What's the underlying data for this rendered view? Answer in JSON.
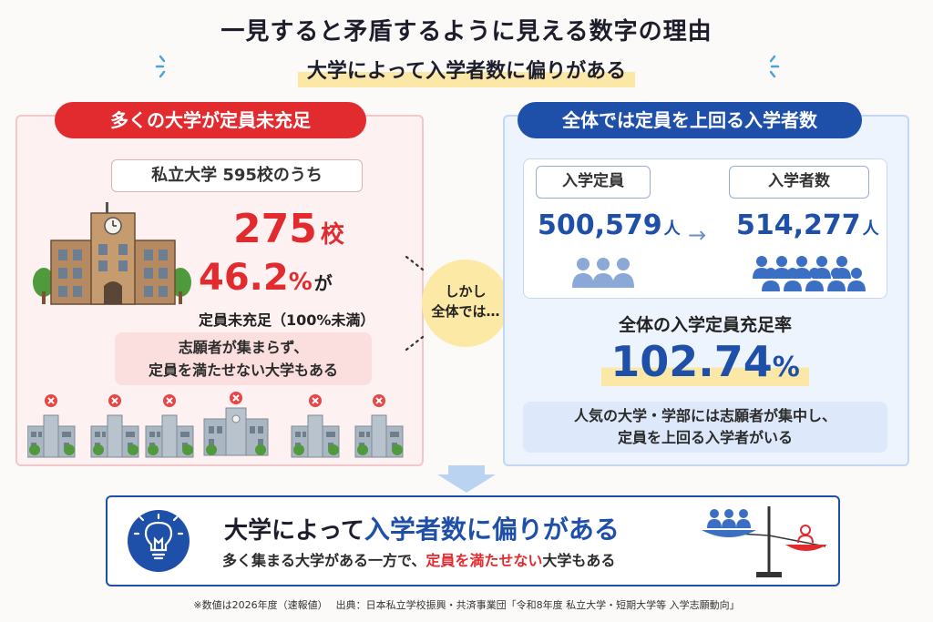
{
  "title": "一見すると矛盾するように見える数字の理由",
  "subtitle": "大学によって入学者数に偏りがある",
  "left": {
    "header": "多くの大学が定員未充足",
    "scope": "私立大学 595校のうち",
    "count_value": "275",
    "count_unit": "校",
    "percent_value": "46.2",
    "percent_unit": "%",
    "percent_suffix": "が",
    "status": "定員未充足（100%未満）",
    "note_line1": "志願者が集まらず、",
    "note_line2": "定員を満たせない大学もある"
  },
  "center_bubble": {
    "line1": "しかし",
    "line2": "全体では…"
  },
  "right": {
    "header": "全体では定員を上回る入学者数",
    "capacity_label": "入学定員",
    "capacity_value": "500,579",
    "capacity_unit": "人",
    "enrolled_label": "入学者数",
    "enrolled_value": "514,277",
    "enrolled_unit": "人",
    "rate_label": "全体の入学定員充足率",
    "rate_value": "102.74",
    "rate_unit": "%",
    "note_line1": "人気の大学・学部には志願者が集中し、",
    "note_line2": "定員を上回る入学者がいる"
  },
  "conclusion": {
    "title_prefix": "大学によって",
    "title_emphasis": "入学者数に偏りがある",
    "sub_prefix": "多く集まる大学がある一方で、",
    "sub_emphasis": "定員を満たせない",
    "sub_suffix": "大学もある"
  },
  "footnote": "※数値は2026年度（速報値）　 出典：日本私立学校振興・共済事業団「令和8年度 私立大学・短期大学等 入学志願動向」",
  "colors": {
    "red": "#e12b2f",
    "blue": "#1e4fa9",
    "highlight": "#fbe7a6"
  }
}
